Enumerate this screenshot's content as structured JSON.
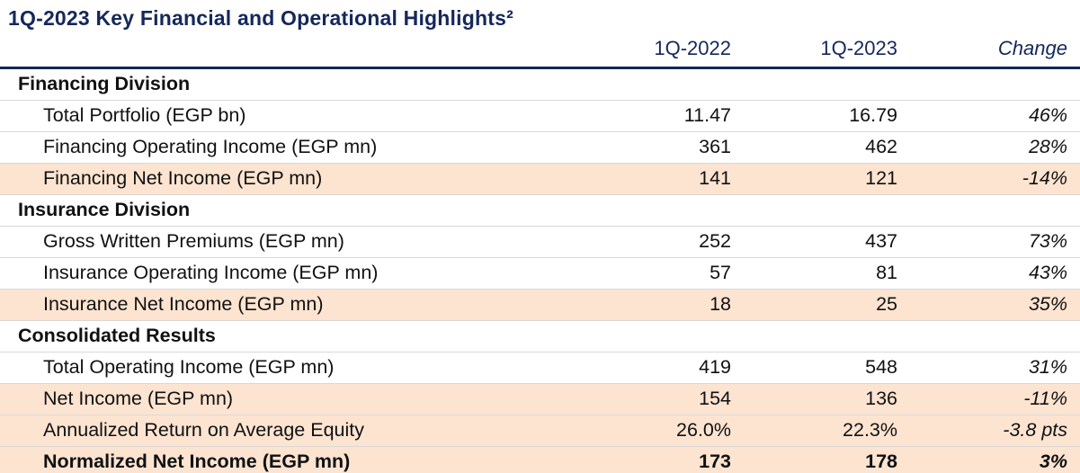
{
  "colors": {
    "navy": "#15285A",
    "highlight_peach": "#FCE4D1",
    "row_divider": "#D8D8D8"
  },
  "header": {
    "title": "1Q-2023 Key Financial and Operational Highlights²"
  },
  "table": {
    "columns": [
      "1Q-2022",
      "1Q-2023",
      "Change"
    ],
    "sections": [
      {
        "title": "Financing Division",
        "rows": [
          {
            "label": "Total Portfolio (EGP bn)",
            "q1_2022": "11.47",
            "q1_2023": "16.79",
            "change": "46%"
          },
          {
            "label": "Financing Operating Income (EGP mn)",
            "q1_2022": "361",
            "q1_2023": "462",
            "change": "28%"
          },
          {
            "label": "Financing Net Income (EGP mn)",
            "q1_2022": "141",
            "q1_2023": "121",
            "change": "-14%"
          }
        ]
      },
      {
        "title": "Insurance Division",
        "rows": [
          {
            "label": "Gross Written Premiums (EGP mn)",
            "q1_2022": "252",
            "q1_2023": "437",
            "change": "73%"
          },
          {
            "label": "Insurance Operating Income (EGP mn)",
            "q1_2022": "57",
            "q1_2023": "81",
            "change": "43%"
          },
          {
            "label": "Insurance Net Income (EGP mn)",
            "q1_2022": "18",
            "q1_2023": "25",
            "change": "35%"
          }
        ]
      },
      {
        "title": "Consolidated Results",
        "rows": [
          {
            "label": "Total Operating Income (EGP mn)",
            "q1_2022": "419",
            "q1_2023": "548",
            "change": "31%"
          },
          {
            "label": "Net Income (EGP mn)",
            "q1_2022": "154",
            "q1_2023": "136",
            "change": "-11%"
          },
          {
            "label": "Annualized Return on Average Equity",
            "q1_2022": "26.0%",
            "q1_2023": "22.3%",
            "change": "-3.8 pts"
          },
          {
            "label": "Normalized Net Income (EGP mn)",
            "q1_2022": "173",
            "q1_2023": "178",
            "change": "3%"
          }
        ]
      }
    ]
  }
}
